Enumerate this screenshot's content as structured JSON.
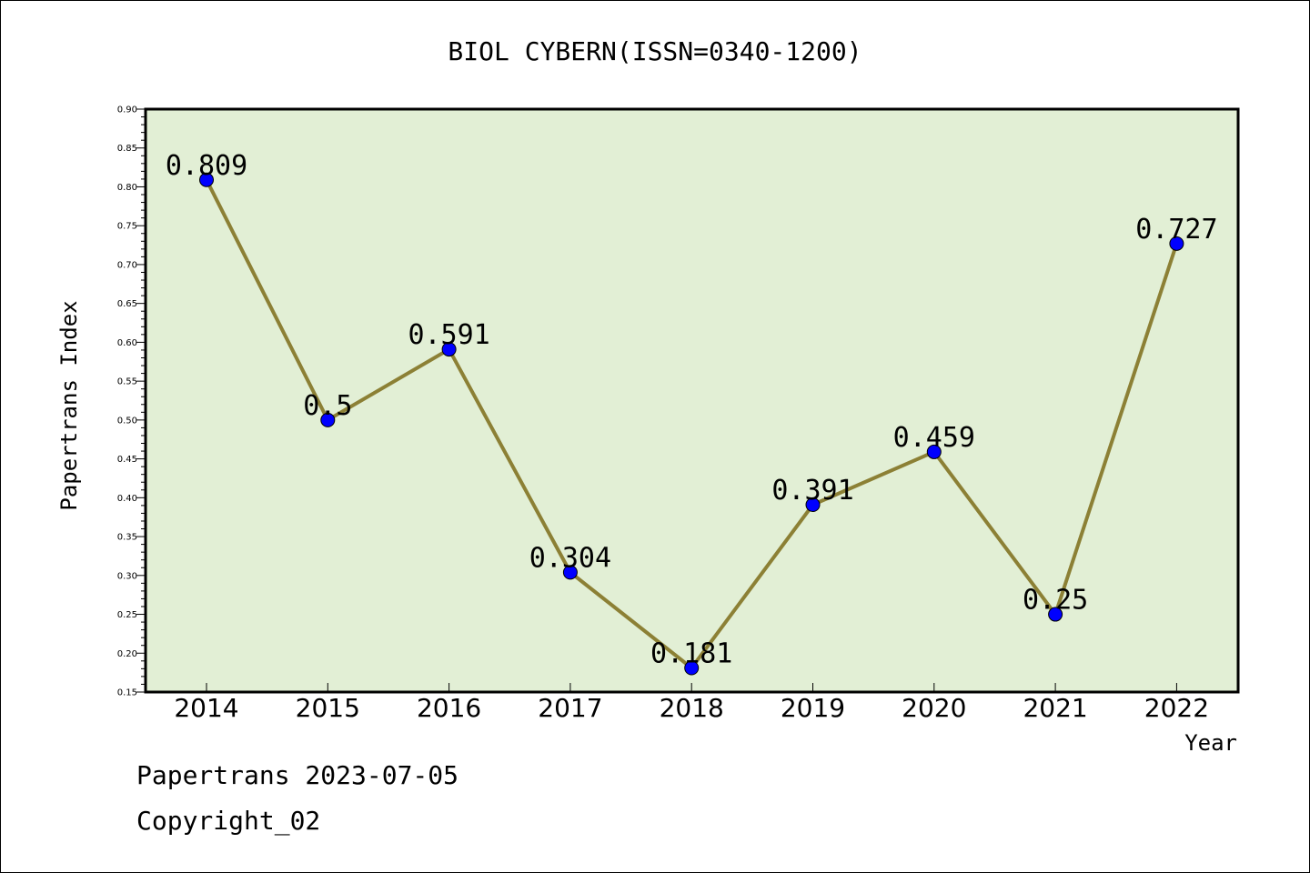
{
  "chart_data": {
    "type": "line",
    "title": "BIOL CYBERN(ISSN=0340-1200)",
    "xlabel": "Year",
    "ylabel": "Papertrans Index",
    "categories": [
      "2014",
      "2015",
      "2016",
      "2017",
      "2018",
      "2019",
      "2020",
      "2021",
      "2022"
    ],
    "series": [
      {
        "values": [
          0.809,
          0.5,
          0.591,
          0.304,
          0.181,
          0.391,
          0.459,
          0.25,
          0.727
        ]
      }
    ],
    "data_labels": [
      "0.809",
      "0.5",
      "0.591",
      "0.304",
      "0.181",
      "0.391",
      "0.459",
      "0.25",
      "0.727"
    ],
    "ylim": [
      0.15,
      0.9
    ],
    "yticks": [
      "0.15",
      "0.20",
      "0.25",
      "0.30",
      "0.35",
      "0.40",
      "0.45",
      "0.50",
      "0.55",
      "0.60",
      "0.65",
      "0.70",
      "0.75",
      "0.80",
      "0.85",
      "0.90"
    ],
    "grid": false,
    "colors": {
      "plot_background": "#e2efd5",
      "line": "#8c8035",
      "marker": "#0000ff"
    }
  },
  "footer": {
    "line1": "Papertrans 2023-07-05",
    "line2": "Copyright_02"
  }
}
